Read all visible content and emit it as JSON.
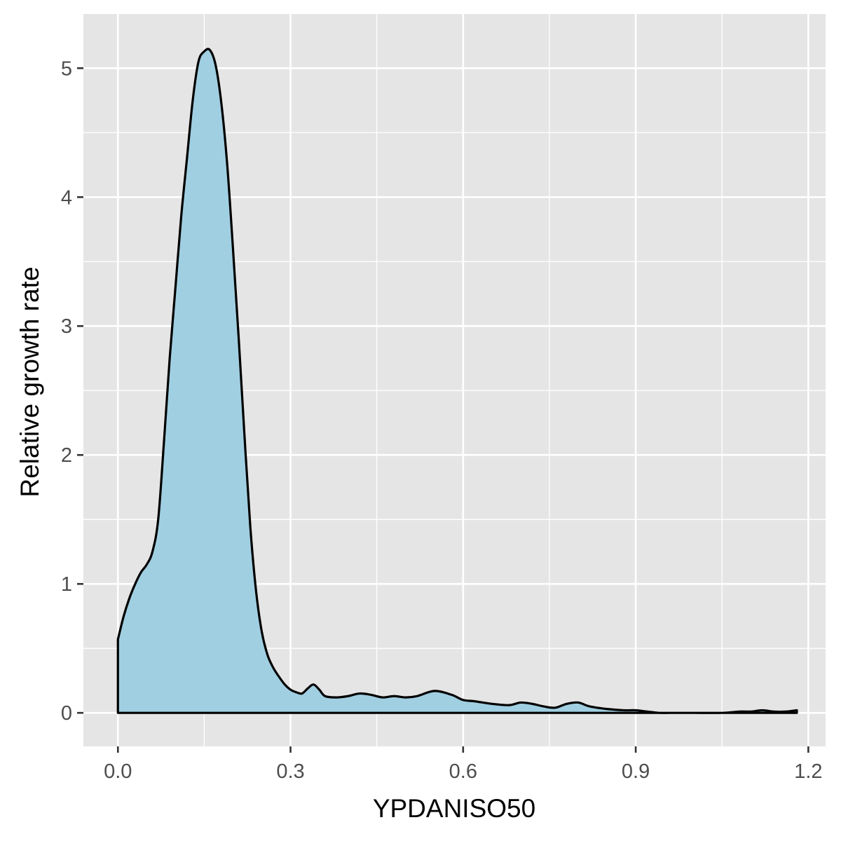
{
  "chart_data": {
    "type": "area",
    "title": "",
    "xlabel": "YPDANISO50",
    "ylabel": "Relative growth rate",
    "xlim": [
      -0.06,
      1.23
    ],
    "ylim": [
      -0.26,
      5.42
    ],
    "x_ticks": [
      0.0,
      0.3,
      0.6,
      0.9,
      1.2
    ],
    "x_tick_labels": [
      "0.0",
      "0.3",
      "0.6",
      "0.9",
      "1.2"
    ],
    "y_ticks": [
      0,
      1,
      2,
      3,
      4,
      5
    ],
    "y_tick_labels": [
      "0",
      "1",
      "2",
      "3",
      "4",
      "5"
    ],
    "grid": true,
    "legend": "none",
    "fill_color": "#a0cfe1",
    "line_color": "#000000",
    "panel_color": "#e5e5e5",
    "series": [
      {
        "x": [
          0.0,
          0.01,
          0.02,
          0.03,
          0.04,
          0.05,
          0.06,
          0.07,
          0.08,
          0.09,
          0.1,
          0.11,
          0.12,
          0.13,
          0.14,
          0.15,
          0.16,
          0.17,
          0.18,
          0.19,
          0.2,
          0.21,
          0.22,
          0.23,
          0.24,
          0.25,
          0.26,
          0.27,
          0.28,
          0.29,
          0.3,
          0.31,
          0.32,
          0.33,
          0.34,
          0.35,
          0.36,
          0.38,
          0.4,
          0.42,
          0.44,
          0.46,
          0.48,
          0.5,
          0.52,
          0.55,
          0.58,
          0.6,
          0.62,
          0.65,
          0.68,
          0.7,
          0.72,
          0.74,
          0.76,
          0.78,
          0.8,
          0.82,
          0.85,
          0.88,
          0.9,
          0.92,
          0.94,
          0.96,
          0.98,
          1.0,
          1.05,
          1.08,
          1.1,
          1.12,
          1.14,
          1.16,
          1.18
        ],
        "values": [
          0.57,
          0.75,
          0.89,
          1.0,
          1.09,
          1.15,
          1.25,
          1.5,
          2.1,
          2.75,
          3.3,
          3.85,
          4.3,
          4.75,
          5.05,
          5.13,
          5.14,
          5.02,
          4.72,
          4.25,
          3.6,
          2.9,
          2.15,
          1.45,
          0.95,
          0.63,
          0.45,
          0.35,
          0.28,
          0.22,
          0.18,
          0.16,
          0.15,
          0.19,
          0.22,
          0.18,
          0.13,
          0.12,
          0.13,
          0.15,
          0.14,
          0.12,
          0.13,
          0.12,
          0.13,
          0.17,
          0.14,
          0.1,
          0.09,
          0.07,
          0.06,
          0.08,
          0.07,
          0.05,
          0.04,
          0.07,
          0.08,
          0.05,
          0.03,
          0.02,
          0.02,
          0.01,
          0.0,
          0.0,
          0.0,
          0.0,
          0.0,
          0.01,
          0.01,
          0.02,
          0.01,
          0.01,
          0.02
        ]
      }
    ]
  }
}
